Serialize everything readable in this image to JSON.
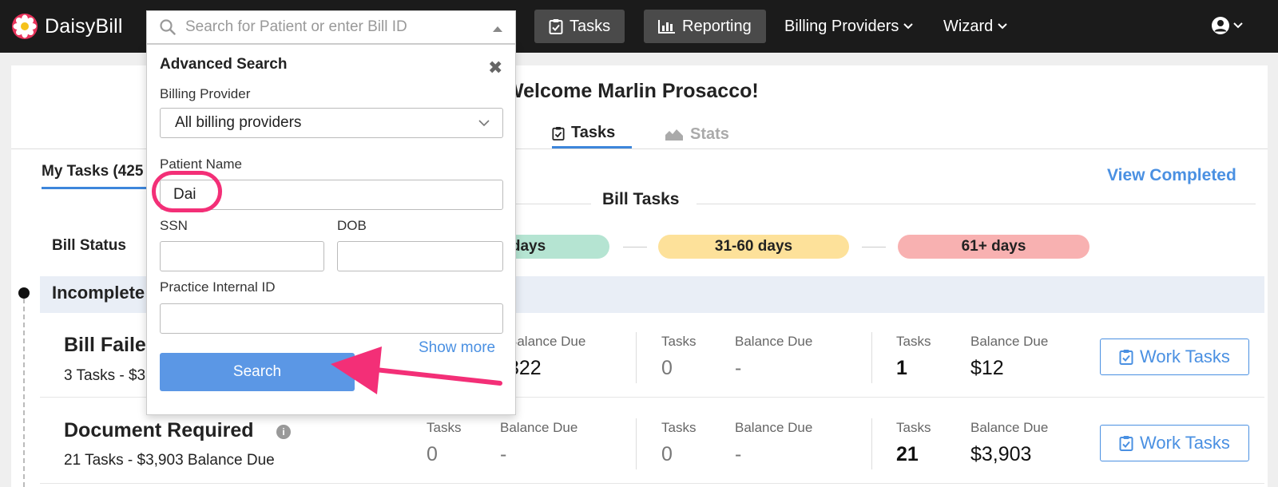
{
  "brand": {
    "name": "DaisyBill"
  },
  "nav": {
    "tasks_label": "Tasks",
    "reporting_label": "Reporting",
    "billing_providers_label": "Billing Providers",
    "wizard_label": "Wizard"
  },
  "search": {
    "placeholder": "Search for Patient or enter Bill ID",
    "value": ""
  },
  "advanced_search": {
    "title": "Advanced Search",
    "billing_provider_label": "Billing Provider",
    "billing_provider_value": "All billing providers",
    "patient_name_label": "Patient Name",
    "patient_name_value": "Dai",
    "ssn_label": "SSN",
    "ssn_value": "",
    "dob_label": "DOB",
    "dob_value": "",
    "practice_id_label": "Practice Internal ID",
    "practice_id_value": "",
    "show_more_label": "Show more",
    "search_button_label": "Search"
  },
  "welcome": "Welcome Marlin Prosacco!",
  "tabs": [
    {
      "label": "Tasks",
      "active": true
    },
    {
      "label": "Stats",
      "active": false
    }
  ],
  "my_tasks_label": "My Tasks (425",
  "view_completed_label": "View Completed",
  "bill_tasks_title": "Bill Tasks",
  "bill_status_label": "Bill Status",
  "age_buckets": [
    "days",
    "31-60 days",
    "61+ days"
  ],
  "incomplete_label": "Incomplete",
  "rows": [
    {
      "title": "Bill Faile",
      "subtitle": "3 Tasks - $3",
      "c1_tasks": "",
      "c1_balance": "322",
      "c2_tasks_label": "Tasks",
      "c2_tasks": "0",
      "c2_balance_label": "Balance Due",
      "c2_balance": "-",
      "c3_tasks_label": "Tasks",
      "c3_tasks": "1",
      "c3_balance_label": "Balance Due",
      "c3_balance": "$12",
      "c1_balance_label": "Balance Due",
      "button_label": "Work Tasks"
    },
    {
      "title": "Document Required",
      "subtitle": "21 Tasks - $3,903 Balance Due",
      "c1_tasks_label": "Tasks",
      "c1_tasks": "0",
      "c1_balance_label": "Balance Due",
      "c1_balance": "-",
      "c2_tasks_label": "Tasks",
      "c2_tasks": "0",
      "c2_balance_label": "Balance Due",
      "c2_balance": "-",
      "c3_tasks_label": "Tasks",
      "c3_tasks": "21",
      "c3_balance_label": "Balance Due",
      "c3_balance": "$3,903",
      "button_label": "Work Tasks"
    }
  ],
  "colors": {
    "accent": "#4a90e2",
    "annotation": "#f32f77",
    "green_bucket": "#b5e4d2",
    "yellow_bucket": "#fde19a",
    "red_bucket": "#f8b1b1"
  }
}
